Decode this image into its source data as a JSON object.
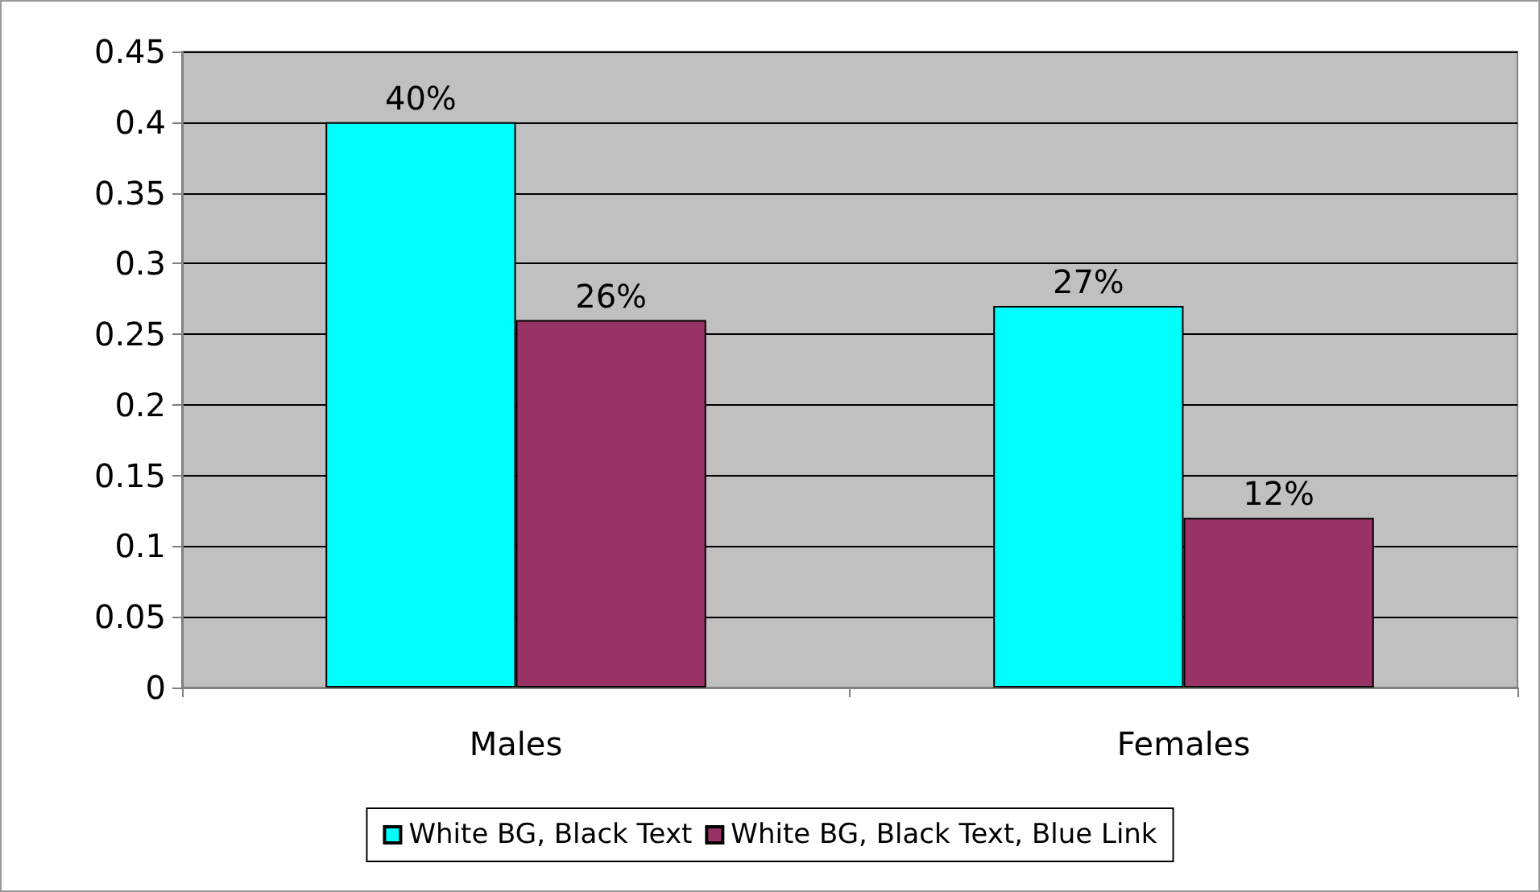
{
  "chart_data": {
    "type": "bar",
    "categories": [
      "Males",
      "Females"
    ],
    "series": [
      {
        "name": "White BG, Black Text",
        "color": "#00ffff",
        "values": [
          0.4,
          0.27
        ],
        "value_labels": [
          "40%",
          "27%"
        ]
      },
      {
        "name": "White BG, Black Text, Blue Link",
        "color": "#993366",
        "values": [
          0.26,
          0.12
        ],
        "value_labels": [
          "26%",
          "12%"
        ]
      }
    ],
    "ylim": [
      0,
      0.45
    ],
    "yticks": [
      0,
      0.05,
      0.1,
      0.15,
      0.2,
      0.25,
      0.3,
      0.35,
      0.4,
      0.45
    ],
    "grid": "y",
    "legend": "bottom"
  }
}
